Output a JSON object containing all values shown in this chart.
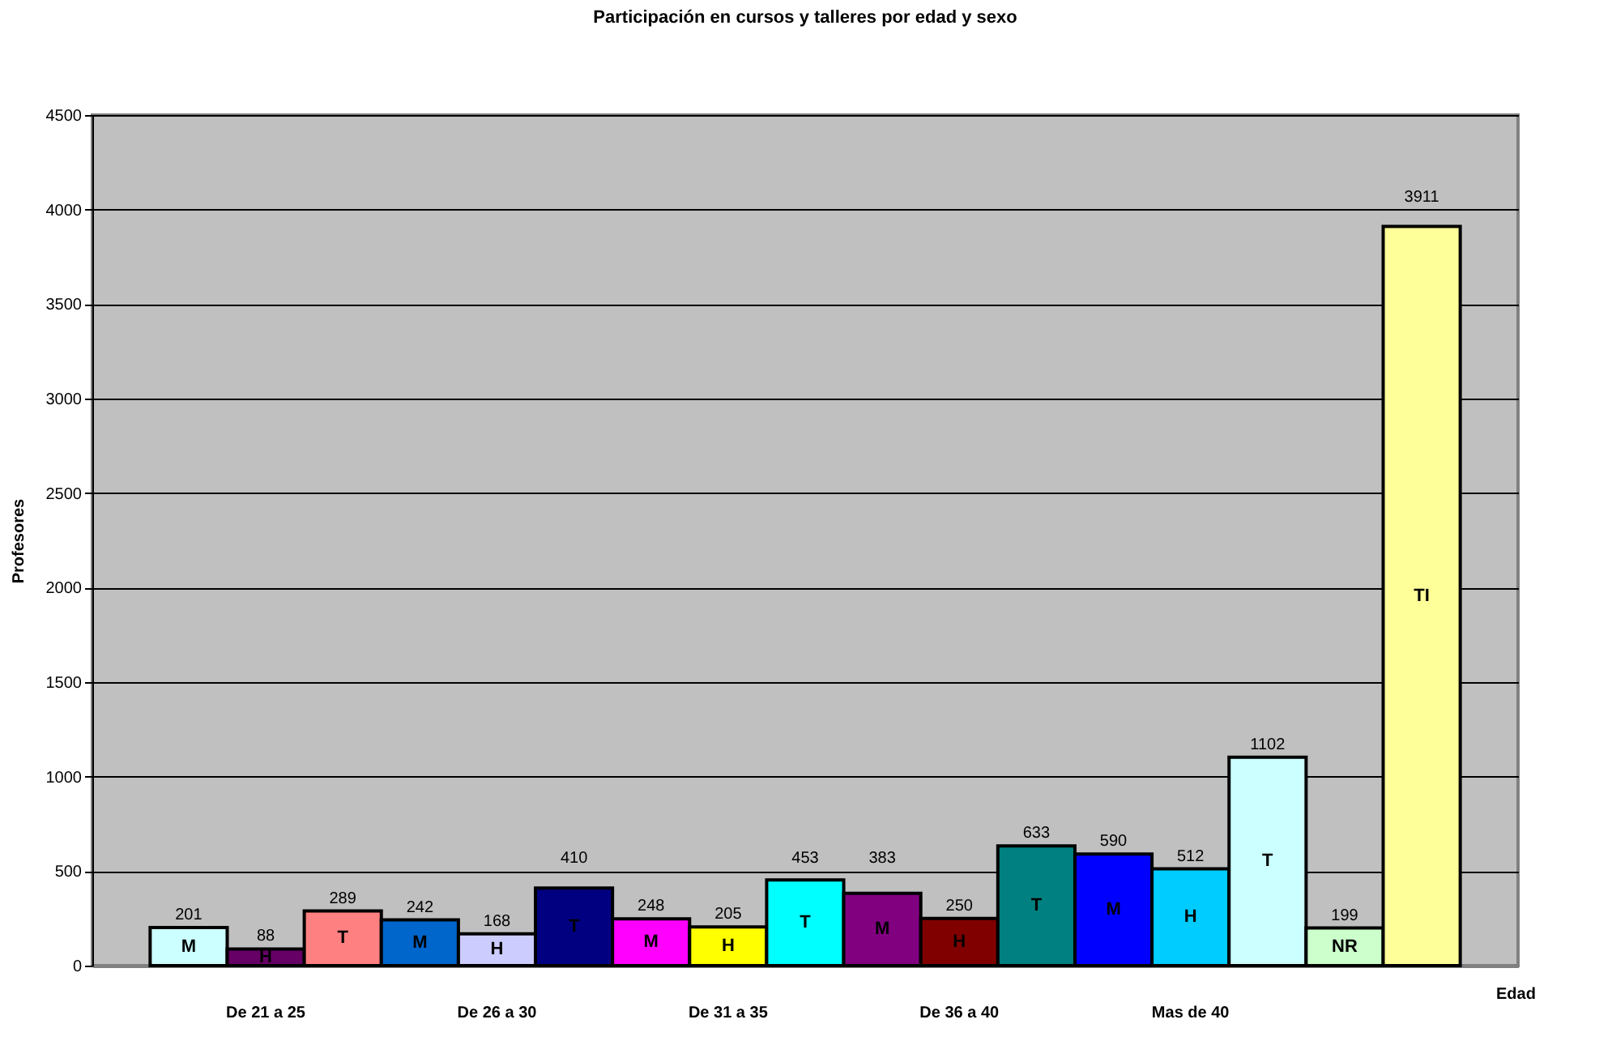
{
  "chart_data": {
    "type": "bar",
    "title": "Participación en cursos y talleres por edad y sexo",
    "xlabel": "Edad",
    "ylabel": "Profesores",
    "categories": [
      "M",
      "H",
      "T",
      "M",
      "H",
      "T",
      "M",
      "H",
      "T",
      "M",
      "H",
      "T",
      "M",
      "H",
      "T",
      "NR",
      "TI"
    ],
    "values": [
      201,
      88,
      289,
      242,
      168,
      410,
      248,
      205,
      453,
      383,
      250,
      633,
      590,
      512,
      1102,
      199,
      3911
    ],
    "colors": [
      "#ccffff",
      "#660066",
      "#ff8080",
      "#0066cc",
      "#ccccff",
      "#000080",
      "#ff00ff",
      "#ffff00",
      "#00ffff",
      "#800080",
      "#800000",
      "#008080",
      "#0000ff",
      "#00ccff",
      "#ccffff",
      "#ccffcc",
      "#ffff99"
    ],
    "annotations": [
      "De 21 a 25",
      "De 26 a 30",
      "De 31 a 35",
      "De 36 a 40",
      "Mas de 40"
    ],
    "ylim": [
      0,
      4500
    ],
    "yticks": [
      0,
      500,
      1000,
      1500,
      2000,
      2500,
      3000,
      3500,
      4000,
      4500
    ],
    "grid": "y",
    "data_labels": true
  }
}
